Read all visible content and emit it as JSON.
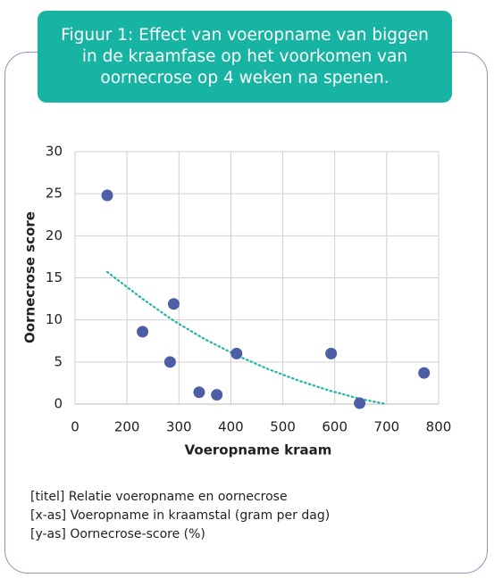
{
  "chart_data": {
    "type": "scatter",
    "title": "Figuur 1: Effect van voeropname van biggen in de kraamfase op het voorkomen van oornecrose op 4 weken na spenen.",
    "x_label": "Voeropname kraam",
    "y_label": "Oornecrose score",
    "x": [
      162,
      230,
      283,
      290,
      339,
      373,
      411,
      593,
      648,
      772
    ],
    "values": [
      24.8,
      8.6,
      5.0,
      11.9,
      1.4,
      1.1,
      6.0,
      6.0,
      0.1,
      3.7
    ],
    "color": "#4c5ea6",
    "trendline": {
      "x": [
        162,
        230,
        290,
        350,
        411,
        470,
        530,
        590,
        650,
        699
      ],
      "values": [
        15.7,
        12.5,
        9.9,
        7.7,
        5.8,
        4.2,
        2.8,
        1.6,
        0.6,
        0
      ],
      "color": "#1fb5a6"
    },
    "xlim": [
      100,
      800
    ],
    "xticks": [
      {
        "value": 100,
        "label": "0"
      },
      200,
      300,
      400,
      500,
      600,
      700,
      800
    ],
    "ylim": [
      0,
      30
    ],
    "yticks": [
      0,
      5,
      10,
      15,
      20,
      25,
      30
    ],
    "grid": true,
    "notes": [
      "[titel] Relatie voeropname en oornecrose",
      "[x-as] Voeropname in kraamstal (gram per dag)",
      "[y-as] Oornecrose-score (%)"
    ]
  }
}
